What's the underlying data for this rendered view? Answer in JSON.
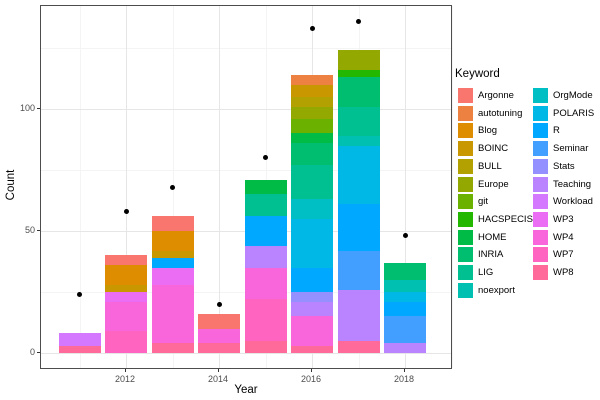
{
  "y_axis": {
    "label": "Count",
    "tick_labels": [
      "0",
      "50",
      "100"
    ],
    "tick_values": [
      0,
      50,
      100
    ],
    "minor_values": [
      25,
      75,
      125
    ]
  },
  "x_axis": {
    "label": "Year",
    "tick_labels": [
      "2012",
      "2014",
      "2016",
      "2018"
    ],
    "tick_values": [
      2012,
      2014,
      2016,
      2018
    ],
    "minor_years": [
      2011,
      2013,
      2015,
      2017,
      2019
    ]
  },
  "legend": {
    "title": "Keyword",
    "items": [
      {
        "label": "Argonne",
        "color": "#F8766D"
      },
      {
        "label": "autotuning",
        "color": "#ED8141"
      },
      {
        "label": "Blog",
        "color": "#DE8C00"
      },
      {
        "label": "BOINC",
        "color": "#C99800"
      },
      {
        "label": "BULL",
        "color": "#B2A100"
      },
      {
        "label": "Europe",
        "color": "#93A800"
      },
      {
        "label": "git",
        "color": "#6BB100"
      },
      {
        "label": "HACSPECIS",
        "color": "#24B700"
      },
      {
        "label": "HOME",
        "color": "#00BB45"
      },
      {
        "label": "INRIA",
        "color": "#00BE70"
      },
      {
        "label": "LIG",
        "color": "#00C092"
      },
      {
        "label": "noexport",
        "color": "#00C0B2"
      },
      {
        "label": "OrgMode",
        "color": "#00BFC4"
      },
      {
        "label": "POLARIS",
        "color": "#00B8E5"
      },
      {
        "label": "R",
        "color": "#00A9FF"
      },
      {
        "label": "Seminar",
        "color": "#429EFF"
      },
      {
        "label": "Stats",
        "color": "#9590FF"
      },
      {
        "label": "Teaching",
        "color": "#BA83FF"
      },
      {
        "label": "Workload",
        "color": "#D478FF"
      },
      {
        "label": "WP3",
        "color": "#EA6DF3"
      },
      {
        "label": "WP4",
        "color": "#F966DC"
      },
      {
        "label": "WP7",
        "color": "#FF64C1"
      },
      {
        "label": "WP8",
        "color": "#FF6A9A"
      }
    ]
  },
  "chart_data": {
    "type": "bar",
    "stacked": true,
    "title": "",
    "xlabel": "Year",
    "ylabel": "Count",
    "ylim": [
      0,
      142
    ],
    "grid": true,
    "legend_position": "right",
    "bars": [
      {
        "year": 2011,
        "total": 8,
        "segments": [
          {
            "keyword": "Workload",
            "value": 5
          },
          {
            "keyword": "WP8",
            "value": 3
          }
        ]
      },
      {
        "year": 2012,
        "total": 40,
        "segments": [
          {
            "keyword": "Argonne",
            "value": 4
          },
          {
            "keyword": "Blog",
            "value": 8
          },
          {
            "keyword": "BOINC",
            "value": 3
          },
          {
            "keyword": "WP3",
            "value": 4
          },
          {
            "keyword": "WP4",
            "value": 12
          },
          {
            "keyword": "WP7",
            "value": 9
          }
        ]
      },
      {
        "year": 2013,
        "total": 56,
        "segments": [
          {
            "keyword": "Argonne",
            "value": 6
          },
          {
            "keyword": "Blog",
            "value": 8
          },
          {
            "keyword": "BOINC",
            "value": 3
          },
          {
            "keyword": "R",
            "value": 4
          },
          {
            "keyword": "WP3",
            "value": 7
          },
          {
            "keyword": "WP4",
            "value": 24
          },
          {
            "keyword": "WP8",
            "value": 4
          }
        ]
      },
      {
        "year": 2014,
        "total": 16,
        "segments": [
          {
            "keyword": "Argonne",
            "value": 6
          },
          {
            "keyword": "WP4",
            "value": 6
          },
          {
            "keyword": "WP8",
            "value": 4
          }
        ]
      },
      {
        "year": 2015,
        "total": 71,
        "segments": [
          {
            "keyword": "HOME",
            "value": 6
          },
          {
            "keyword": "LIG",
            "value": 9
          },
          {
            "keyword": "R",
            "value": 12
          },
          {
            "keyword": "Teaching",
            "value": 9
          },
          {
            "keyword": "WP4",
            "value": 13
          },
          {
            "keyword": "WP7",
            "value": 17
          },
          {
            "keyword": "WP8",
            "value": 5
          }
        ]
      },
      {
        "year": 2016,
        "total": 114,
        "segments": [
          {
            "keyword": "autotuning",
            "value": 4
          },
          {
            "keyword": "BOINC",
            "value": 5
          },
          {
            "keyword": "BULL",
            "value": 4
          },
          {
            "keyword": "Europe",
            "value": 5
          },
          {
            "keyword": "git",
            "value": 6
          },
          {
            "keyword": "HOME",
            "value": 4
          },
          {
            "keyword": "INRIA",
            "value": 9
          },
          {
            "keyword": "LIG",
            "value": 14
          },
          {
            "keyword": "OrgMode",
            "value": 8
          },
          {
            "keyword": "POLARIS",
            "value": 20
          },
          {
            "keyword": "R",
            "value": 10
          },
          {
            "keyword": "Stats",
            "value": 4
          },
          {
            "keyword": "Teaching",
            "value": 6
          },
          {
            "keyword": "WP4",
            "value": 12
          },
          {
            "keyword": "WP8",
            "value": 3
          }
        ]
      },
      {
        "year": 2017,
        "total": 124,
        "segments": [
          {
            "keyword": "Europe",
            "value": 8
          },
          {
            "keyword": "HACSPECIS",
            "value": 3
          },
          {
            "keyword": "INRIA",
            "value": 12
          },
          {
            "keyword": "LIG",
            "value": 12
          },
          {
            "keyword": "noexport",
            "value": 4
          },
          {
            "keyword": "POLARIS",
            "value": 24
          },
          {
            "keyword": "R",
            "value": 19
          },
          {
            "keyword": "Seminar",
            "value": 16
          },
          {
            "keyword": "Teaching",
            "value": 21
          },
          {
            "keyword": "WP8",
            "value": 5
          }
        ]
      },
      {
        "year": 2018,
        "total": 37,
        "segments": [
          {
            "keyword": "INRIA",
            "value": 7
          },
          {
            "keyword": "noexport",
            "value": 5
          },
          {
            "keyword": "POLARIS",
            "value": 4
          },
          {
            "keyword": "R",
            "value": 6
          },
          {
            "keyword": "Seminar",
            "value": 11
          },
          {
            "keyword": "Teaching",
            "value": 4
          }
        ]
      }
    ],
    "points": [
      {
        "year": 2011,
        "count": 24
      },
      {
        "year": 2012,
        "count": 58
      },
      {
        "year": 2013,
        "count": 68
      },
      {
        "year": 2014,
        "count": 20
      },
      {
        "year": 2015,
        "count": 80
      },
      {
        "year": 2016,
        "count": 133
      },
      {
        "year": 2017,
        "count": 136
      },
      {
        "year": 2018,
        "count": 48
      }
    ]
  }
}
